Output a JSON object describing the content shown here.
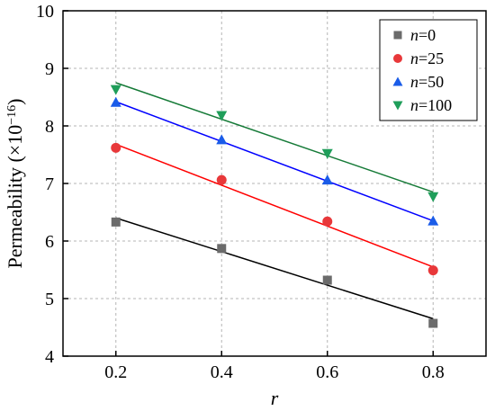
{
  "chart_data": {
    "type": "scatter",
    "x": [
      0.2,
      0.4,
      0.6,
      0.8
    ],
    "xticks": [
      0.2,
      0.4,
      0.6,
      0.8
    ],
    "yticks": [
      4,
      5,
      6,
      7,
      8,
      9,
      10
    ],
    "xlim": [
      0.1,
      0.9
    ],
    "ylim": [
      4,
      10
    ],
    "xlabel": "r",
    "ylabel": {
      "main": "Permeability (×10",
      "exp": "−16",
      "close": ")"
    },
    "grid": true,
    "legend_position": "top-right",
    "series": [
      {
        "name_var": "n",
        "name_val": "=0",
        "marker": "square",
        "color": "#6b6b6b",
        "line_color": "#000000",
        "values": [
          6.33,
          5.87,
          5.32,
          4.57
        ],
        "fit_start": 6.4,
        "fit_end": 4.65
      },
      {
        "name_var": "n",
        "name_val": "=25",
        "marker": "circle",
        "color": "#e8383a",
        "line_color": "#ff0000",
        "values": [
          7.62,
          7.06,
          6.34,
          5.49
        ],
        "fit_start": 7.68,
        "fit_end": 5.55
      },
      {
        "name_var": "n",
        "name_val": "=50",
        "marker": "triangle-up",
        "color": "#1a5ce8",
        "line_color": "#0000ff",
        "values": [
          8.41,
          7.76,
          7.06,
          6.35
        ],
        "fit_start": 8.42,
        "fit_end": 6.35
      },
      {
        "name_var": "n",
        "name_val": "=100",
        "marker": "triangle-down",
        "color": "#1f9e5a",
        "line_color": "#157a37",
        "values": [
          8.63,
          8.18,
          7.52,
          6.77
        ],
        "fit_start": 8.75,
        "fit_end": 6.85
      }
    ]
  }
}
